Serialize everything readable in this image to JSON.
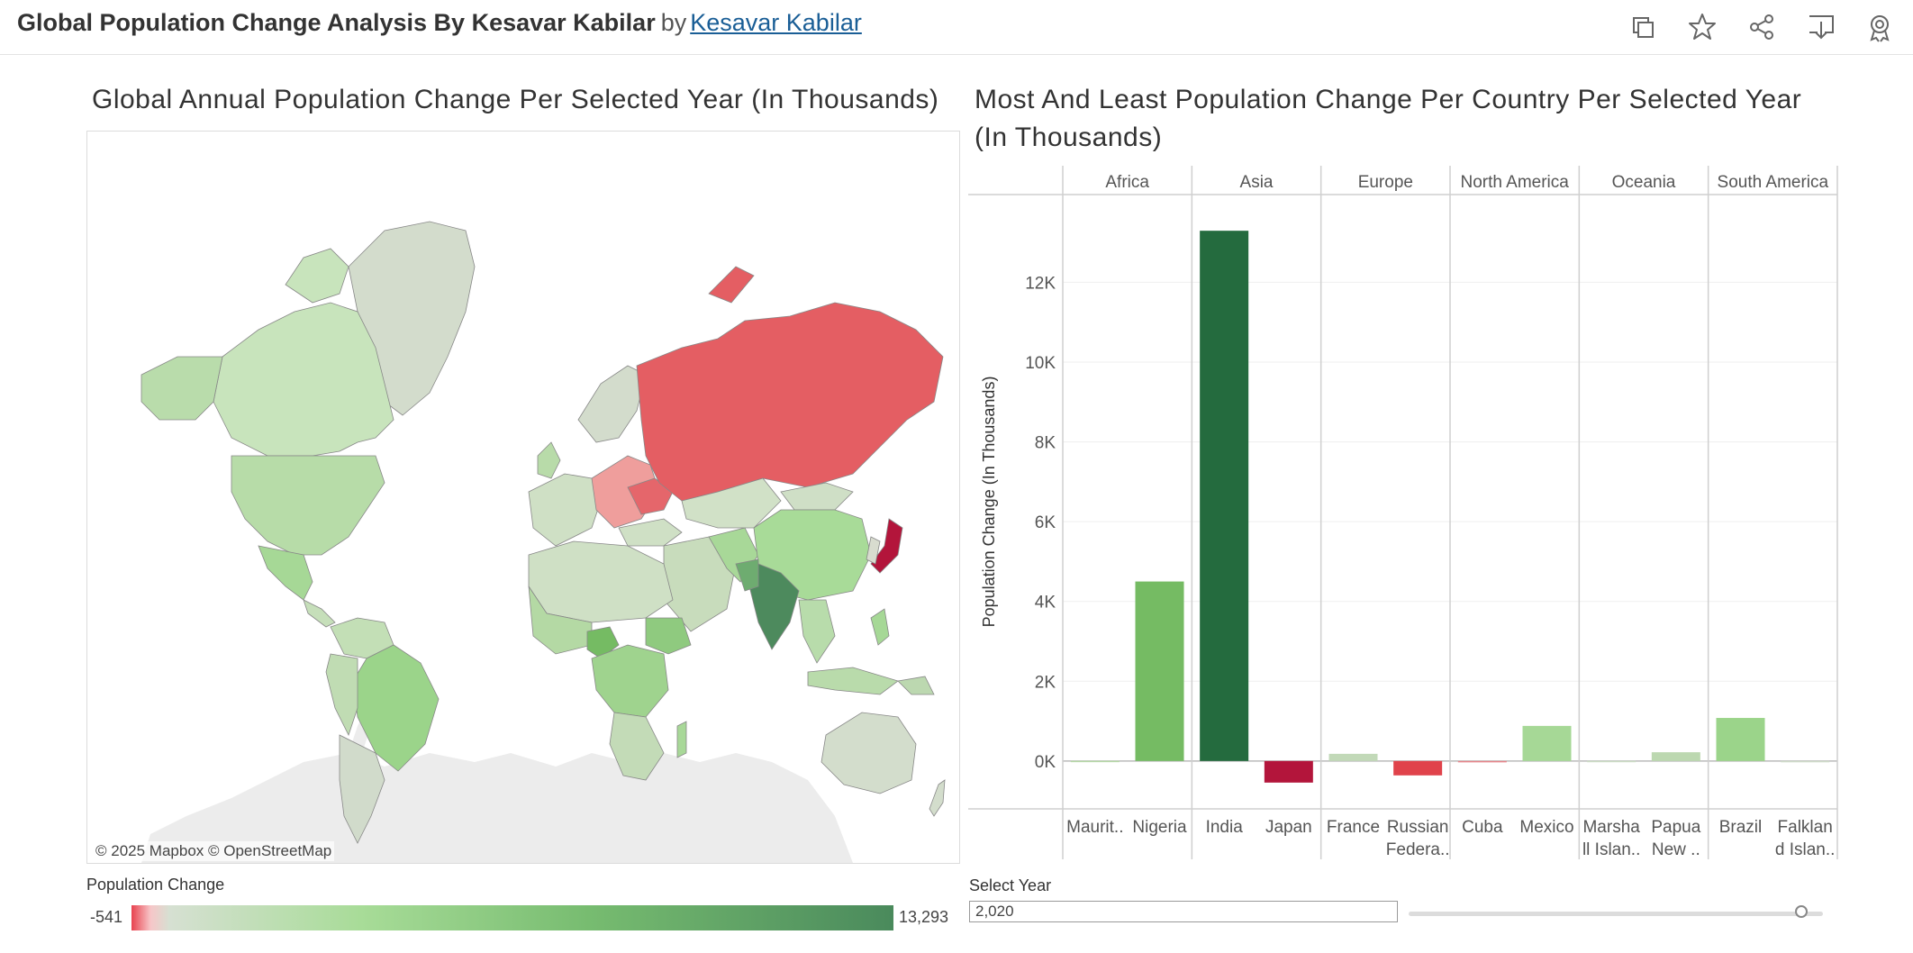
{
  "header": {
    "title": "Global Population Change Analysis By Kesavar Kabilar",
    "by": "by",
    "author": "Kesavar Kabilar",
    "icons": [
      "duplicate-icon",
      "star-icon",
      "share-icon",
      "download-icon",
      "badge-icon"
    ]
  },
  "map": {
    "title": "Global Annual Population Change Per Selected Year (In Thousands)",
    "attribution": "© 2025 Mapbox  © OpenStreetMap"
  },
  "legend": {
    "title": "Population Change",
    "min": "-541",
    "max": "13,293"
  },
  "chart": {
    "title_line1": "Most And Least Population Change Per Country Per Selected Year",
    "title_line2": "(In Thousands)"
  },
  "chart_data": {
    "type": "bar",
    "ylabel": "Population Change (In Thousands)",
    "ylim": [
      -1200,
      14200
    ],
    "yticks": [
      0,
      2000,
      4000,
      6000,
      8000,
      10000,
      12000
    ],
    "ytick_labels": [
      "0K",
      "2K",
      "4K",
      "6K",
      "8K",
      "10K",
      "12K"
    ],
    "groups": [
      {
        "name": "Africa",
        "bars": [
          {
            "label_lines": [
              "Maurit.."
            ],
            "value": 5,
            "color": "#b7d9a8"
          },
          {
            "label_lines": [
              "Nigeria"
            ],
            "value": 4500,
            "color": "#75bb63"
          }
        ]
      },
      {
        "name": "Asia",
        "bars": [
          {
            "label_lines": [
              "India"
            ],
            "value": 13293,
            "color": "#246b3e"
          },
          {
            "label_lines": [
              "Japan"
            ],
            "value": -541,
            "color": "#b3153b"
          }
        ]
      },
      {
        "name": "Europe",
        "bars": [
          {
            "label_lines": [
              "France"
            ],
            "value": 180,
            "color": "#c2d9b8"
          },
          {
            "label_lines": [
              "Russian",
              "Federa.."
            ],
            "value": -360,
            "color": "#e0434b"
          }
        ]
      },
      {
        "name": "North America",
        "bars": [
          {
            "label_lines": [
              "Cuba"
            ],
            "value": -20,
            "color": "#e8868c"
          },
          {
            "label_lines": [
              "Mexico"
            ],
            "value": 880,
            "color": "#a6d896"
          }
        ]
      },
      {
        "name": "Oceania",
        "bars": [
          {
            "label_lines": [
              "Marsha",
              "ll Islan.."
            ],
            "value": 3,
            "color": "#ccdcc6"
          },
          {
            "label_lines": [
              "Papua",
              "New .."
            ],
            "value": 220,
            "color": "#bcd8b0"
          }
        ]
      },
      {
        "name": "South America",
        "bars": [
          {
            "label_lines": [
              "Brazil"
            ],
            "value": 1080,
            "color": "#9bd48a"
          },
          {
            "label_lines": [
              "Falklan",
              "d Islan.."
            ],
            "value": 1,
            "color": "#d0dccb"
          }
        ]
      }
    ]
  },
  "year_filter": {
    "label": "Select Year",
    "value": "2,020"
  }
}
